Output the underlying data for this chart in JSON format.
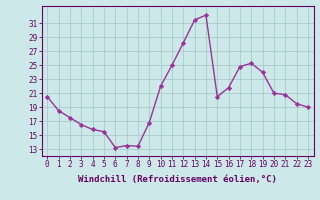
{
  "x": [
    0,
    1,
    2,
    3,
    4,
    5,
    6,
    7,
    8,
    9,
    10,
    11,
    12,
    13,
    14,
    15,
    16,
    17,
    18,
    19,
    20,
    21,
    22,
    23
  ],
  "y": [
    20.5,
    18.5,
    17.5,
    16.5,
    15.8,
    15.5,
    13.2,
    13.5,
    13.4,
    16.8,
    22.0,
    25.0,
    28.2,
    31.5,
    32.2,
    20.5,
    21.8,
    24.8,
    25.3,
    24.0,
    21.0,
    20.8,
    19.5,
    19.0
  ],
  "line_color": "#993399",
  "marker": "D",
  "markersize": 2.2,
  "linewidth": 1.0,
  "xlabel": "Windchill (Refroidissement éolien,°C)",
  "xlabel_fontsize": 6.5,
  "ylabel_ticks": [
    13,
    15,
    17,
    19,
    21,
    23,
    25,
    27,
    29,
    31
  ],
  "xtick_labels": [
    "0",
    "1",
    "2",
    "3",
    "4",
    "5",
    "6",
    "7",
    "8",
    "9",
    "10",
    "11",
    "12",
    "13",
    "14",
    "15",
    "16",
    "17",
    "18",
    "19",
    "20",
    "21",
    "22",
    "23"
  ],
  "xlim": [
    -0.5,
    23.5
  ],
  "ylim": [
    12.0,
    33.5
  ],
  "background_color": "#cde8e8",
  "grid_color": "#b0d0d0",
  "tick_fontsize": 5.5
}
